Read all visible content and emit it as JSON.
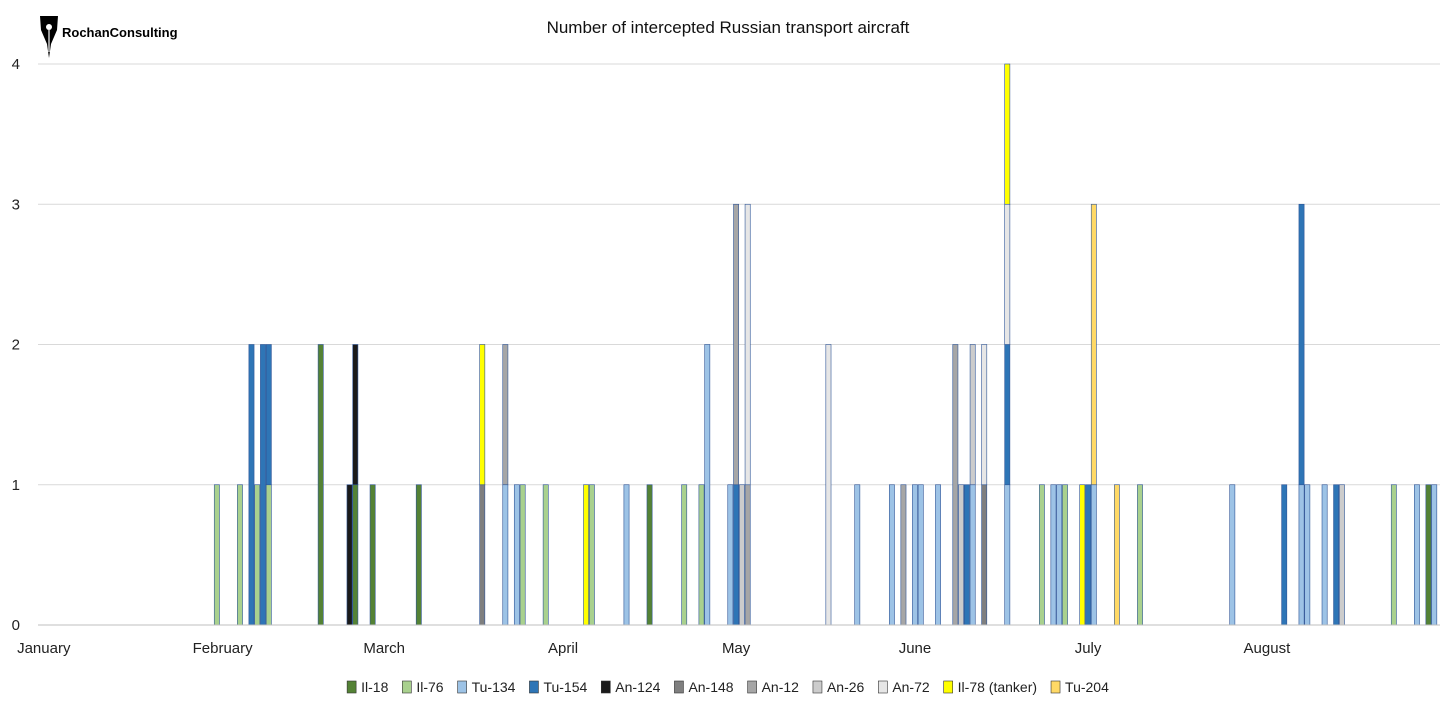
{
  "logo": {
    "text": "RochanConsulting"
  },
  "chart_data": {
    "type": "bar",
    "title": "Number of intercepted Russian transport aircraft",
    "stacked": true,
    "x_unit": "day of year",
    "xlim": [
      0,
      243
    ],
    "ylim": [
      0,
      4
    ],
    "yticks": [
      0,
      1,
      2,
      3,
      4
    ],
    "grid": true,
    "legend_position": "bottom",
    "month_labels": [
      {
        "label": "January",
        "day": 1
      },
      {
        "label": "February",
        "day": 32
      },
      {
        "label": "March",
        "day": 60
      },
      {
        "label": "April",
        "day": 91
      },
      {
        "label": "May",
        "day": 121
      },
      {
        "label": "June",
        "day": 152
      },
      {
        "label": "July",
        "day": 182
      },
      {
        "label": "August",
        "day": 213
      }
    ],
    "series": [
      {
        "name": "Il-18",
        "color": "#548235",
        "points": [
          [
            49,
            2
          ],
          [
            55,
            1
          ],
          [
            58,
            1
          ],
          [
            66,
            1
          ],
          [
            106,
            1
          ],
          [
            241,
            1
          ]
        ]
      },
      {
        "name": "Il-76",
        "color": "#a9d18e",
        "points": [
          [
            31,
            1
          ],
          [
            35,
            1
          ],
          [
            38,
            1
          ],
          [
            40,
            1
          ],
          [
            84,
            1
          ],
          [
            88,
            1
          ],
          [
            96,
            1
          ],
          [
            112,
            1
          ],
          [
            115,
            1
          ],
          [
            174,
            1
          ],
          [
            178,
            1
          ],
          [
            191,
            1
          ],
          [
            235,
            1
          ]
        ]
      },
      {
        "name": "Tu-134",
        "color": "#9dc3e6",
        "points": [
          [
            81,
            1
          ],
          [
            83,
            1
          ],
          [
            102,
            1
          ],
          [
            116,
            2
          ],
          [
            120,
            1
          ],
          [
            142,
            1
          ],
          [
            148,
            1
          ],
          [
            152,
            1
          ],
          [
            153,
            1
          ],
          [
            156,
            1
          ],
          [
            162,
            1
          ],
          [
            168,
            1
          ],
          [
            176,
            1
          ],
          [
            177,
            1
          ],
          [
            183,
            1
          ],
          [
            207,
            1
          ],
          [
            219,
            1
          ],
          [
            220,
            1
          ],
          [
            223,
            1
          ],
          [
            239,
            1
          ],
          [
            242,
            1
          ]
        ]
      },
      {
        "name": "Tu-154",
        "color": "#2e75b6",
        "points": [
          [
            37,
            2
          ],
          [
            39,
            2
          ],
          [
            40,
            1
          ],
          [
            121,
            1
          ],
          [
            161,
            1
          ],
          [
            168,
            1
          ],
          [
            182,
            1
          ],
          [
            216,
            1
          ],
          [
            219,
            2
          ],
          [
            225,
            1
          ]
        ]
      },
      {
        "name": "An-124",
        "color": "#1a1a1a",
        "points": [
          [
            54,
            1
          ],
          [
            55,
            1
          ]
        ]
      },
      {
        "name": "An-148",
        "color": "#7f7f7f",
        "points": [
          [
            77,
            1
          ],
          [
            164,
            1
          ]
        ]
      },
      {
        "name": "An-12",
        "color": "#a6a6a6",
        "points": [
          [
            81,
            1
          ],
          [
            121,
            2
          ],
          [
            123,
            1
          ],
          [
            150,
            1
          ],
          [
            159,
            2
          ]
        ]
      },
      {
        "name": "An-26",
        "color": "#cccccc",
        "points": [
          [
            122,
            1
          ],
          [
            160,
            1
          ],
          [
            162,
            1
          ],
          [
            226,
            1
          ]
        ]
      },
      {
        "name": "An-72",
        "color": "#e6e6e6",
        "points": [
          [
            123,
            2
          ],
          [
            137,
            2
          ],
          [
            164,
            1
          ],
          [
            168,
            1
          ]
        ]
      },
      {
        "name": "Il-78 (tanker)",
        "color": "#ffff00",
        "points": [
          [
            77,
            1
          ],
          [
            95,
            1
          ],
          [
            168,
            1
          ],
          [
            181,
            1
          ]
        ]
      },
      {
        "name": "Tu-204",
        "color": "#ffd966",
        "points": [
          [
            183,
            2
          ],
          [
            187,
            1
          ]
        ]
      }
    ]
  }
}
